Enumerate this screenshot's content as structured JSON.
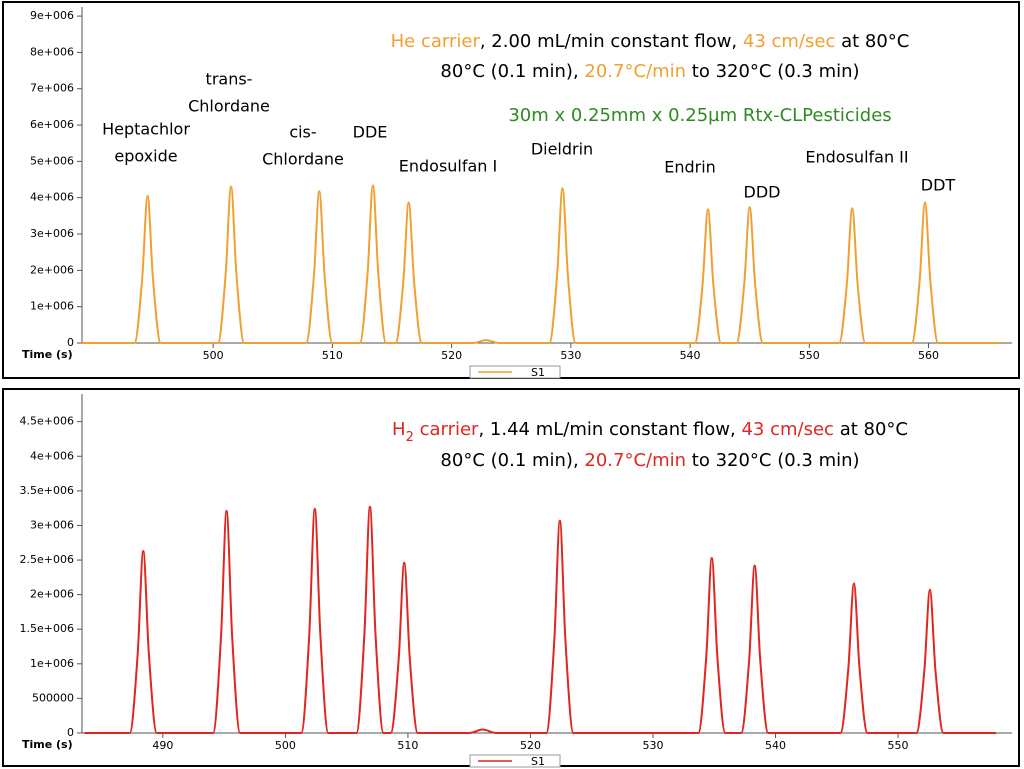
{
  "chart_data": [
    {
      "type": "line",
      "annotations": [
        [
          {
            "text": "He carrier",
            "color": "#f0a030"
          },
          {
            "text": ", 2.00 mL/min constant flow, "
          },
          {
            "text": "43 cm/sec",
            "color": "#f0a030"
          },
          {
            "text": " at 80°C"
          }
        ],
        [
          {
            "text": "80°C (0.1 min), "
          },
          {
            "text": "20.7°C/min",
            "color": "#f0a030"
          },
          {
            "text": " to 320°C (0.3 min)"
          }
        ],
        [
          {
            "text": "30m x 0.25mm x 0.25µm Rtx-CLPesticides",
            "color": "#2e8b22"
          }
        ]
      ],
      "peak_labels": [
        [
          "Heptachlor",
          "epoxide"
        ],
        [
          "trans-",
          "Chlordane"
        ],
        [
          "cis-",
          "Chlordane"
        ],
        [
          "DDE"
        ],
        [
          "Endosulfan I"
        ],
        [
          "Dieldrin"
        ],
        [
          "Endrin"
        ],
        [
          "DDD"
        ],
        [
          "Endosulfan II"
        ],
        [
          "DDT"
        ]
      ],
      "x_label": "Time (s)",
      "xlim": [
        489,
        567
      ],
      "xticks": [
        500,
        510,
        520,
        530,
        540,
        550,
        560
      ],
      "ylim": [
        0,
        9250000
      ],
      "yticks": [
        0,
        {
          "value": 1000000,
          "label": "1e+006"
        },
        {
          "value": 2000000,
          "label": "2e+006"
        },
        {
          "value": 3000000,
          "label": "3e+006"
        },
        {
          "value": 4000000,
          "label": "4e+006"
        },
        {
          "value": 5000000,
          "label": "5e+006"
        },
        {
          "value": 6000000,
          "label": "6e+006"
        },
        {
          "value": 7000000,
          "label": "7e+006"
        },
        {
          "value": 8000000,
          "label": "8e+006"
        },
        {
          "value": 9000000,
          "label": "9e+006"
        }
      ],
      "x": [
        489,
        493.4,
        494.05,
        494.5,
        494.95,
        495.6,
        500.4,
        501.05,
        501.5,
        501.95,
        502.6,
        507.8,
        508.45,
        508.9,
        509.35,
        510.0,
        512.3,
        512.95,
        513.4,
        513.85,
        514.5,
        515.3,
        515.95,
        516.4,
        516.85,
        517.5,
        521.8,
        522.9,
        524.0,
        528.2,
        528.85,
        529.3,
        529.75,
        530.4,
        540.4,
        541.05,
        541.5,
        541.95,
        542.6,
        543.9,
        544.55,
        545.0,
        545.45,
        546.1,
        552.5,
        553.15,
        553.6,
        554.05,
        554.7,
        558.6,
        559.25,
        559.7,
        560.15,
        560.8,
        566
      ],
      "series": [
        {
          "name": "S1",
          "color": "#f0a030",
          "values": [
            0,
            0,
            1780000,
            4050000,
            1780000,
            0,
            0,
            1900000,
            4310000,
            1900000,
            0,
            0,
            1840000,
            4180000,
            1840000,
            0,
            0,
            1910000,
            4340000,
            1910000,
            0,
            0,
            1700000,
            3870000,
            1700000,
            0,
            0,
            80000,
            0,
            0,
            1870000,
            4260000,
            1870000,
            0,
            0,
            1620000,
            3680000,
            1620000,
            0,
            0,
            1650000,
            3740000,
            1650000,
            0,
            0,
            1630000,
            3710000,
            1630000,
            0,
            0,
            1700000,
            3870000,
            1700000,
            0,
            0
          ]
        }
      ]
    },
    {
      "type": "line",
      "annotations": [
        [
          {
            "text": "H",
            "color": "#e0261e"
          },
          {
            "text": "2",
            "color": "#e0261e",
            "sub": true
          },
          {
            "text": " carrier",
            "color": "#e0261e"
          },
          {
            "text": ", 1.44 mL/min constant flow, "
          },
          {
            "text": "43 cm/sec",
            "color": "#e0261e"
          },
          {
            "text": " at 80°C"
          }
        ],
        [
          {
            "text": "80°C (0.1 min), "
          },
          {
            "text": "20.7°C/min",
            "color": "#e0261e"
          },
          {
            "text": " to 320°C (0.3 min)"
          }
        ]
      ],
      "x_label": "Time (s)",
      "xlim": [
        483.4,
        559.3
      ],
      "xticks": [
        490,
        500,
        510,
        520,
        530,
        540,
        550
      ],
      "ylim": [
        0,
        4900000
      ],
      "yticks": [
        0,
        500000,
        {
          "value": 1000000,
          "label": "1e+006"
        },
        {
          "value": 1500000,
          "label": "1.5e+006"
        },
        {
          "value": 2000000,
          "label": "2e+006"
        },
        {
          "value": 2500000,
          "label": "2.5e+006"
        },
        {
          "value": 3000000,
          "label": "3e+006"
        },
        {
          "value": 3500000,
          "label": "3.5e+006"
        },
        {
          "value": 4000000,
          "label": "4e+006"
        },
        {
          "value": 4500000,
          "label": "4.5e+006"
        }
      ],
      "x": [
        483.6,
        487.3,
        487.95,
        488.4,
        488.85,
        489.5,
        494.1,
        494.75,
        495.2,
        495.65,
        496.3,
        501.3,
        501.95,
        502.4,
        502.85,
        503.5,
        505.8,
        506.45,
        506.9,
        507.35,
        508.0,
        508.6,
        509.25,
        509.7,
        510.15,
        510.8,
        515.0,
        516.1,
        517.2,
        521.3,
        521.95,
        522.4,
        522.85,
        523.5,
        533.7,
        534.35,
        534.8,
        535.25,
        535.9,
        537.2,
        537.85,
        538.3,
        538.75,
        539.4,
        545.3,
        545.95,
        546.4,
        546.85,
        547.5,
        551.5,
        552.15,
        552.6,
        553.05,
        553.7,
        558
      ],
      "series": [
        {
          "name": "S1",
          "color": "#e0261e",
          "values": [
            0,
            0,
            1160000,
            2630000,
            1160000,
            0,
            0,
            1410000,
            3210000,
            1410000,
            0,
            0,
            1430000,
            3240000,
            1430000,
            0,
            0,
            1440000,
            3270000,
            1440000,
            0,
            0,
            1080000,
            2460000,
            1080000,
            0,
            0,
            50000,
            0,
            0,
            1350000,
            3070000,
            1350000,
            0,
            0,
            1110000,
            2530000,
            1110000,
            0,
            0,
            1060000,
            2420000,
            1060000,
            0,
            0,
            950000,
            2160000,
            950000,
            0,
            0,
            910000,
            2070000,
            910000,
            0,
            0
          ]
        }
      ]
    }
  ]
}
